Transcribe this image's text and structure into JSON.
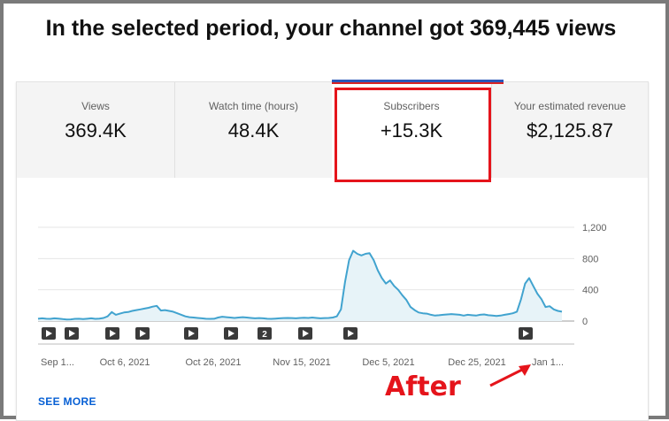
{
  "headline": "In the selected period, your channel got 369,445 views",
  "tabs": [
    {
      "label": "Views",
      "value": "369.4K"
    },
    {
      "label": "Watch time (hours)",
      "value": "48.4K"
    },
    {
      "label": "Subscribers",
      "value": "+15.3K"
    },
    {
      "label": "Your estimated revenue",
      "value": "$2,125.87"
    }
  ],
  "selected_tab": "Subscribers",
  "see_more": "SEE MORE",
  "annotation": "After",
  "colors": {
    "line": "#41a3cf",
    "area": "#e7f3f8",
    "highlight": "#e5141b",
    "link": "#065fd4"
  },
  "chart_data": {
    "type": "area",
    "x_tick_labels": [
      "Sep 1...",
      "Oct 6, 2021",
      "Oct 26, 2021",
      "Nov 15, 2021",
      "Dec 5, 2021",
      "Dec 25, 2021",
      "Jan 1..."
    ],
    "y_ticks": [
      0,
      400,
      800,
      1200
    ],
    "y_tick_labels": [
      "0",
      "400",
      "800",
      "1,200"
    ],
    "ylim": [
      0,
      1200
    ],
    "grid": true,
    "series": [
      {
        "values": [
          30,
          35,
          30,
          28,
          35,
          32,
          25,
          20,
          22,
          28,
          30,
          25,
          30,
          35,
          28,
          32,
          40,
          60,
          115,
          80,
          95,
          110,
          115,
          130,
          140,
          150,
          160,
          170,
          185,
          195,
          135,
          140,
          130,
          120,
          100,
          80,
          60,
          50,
          45,
          40,
          35,
          30,
          28,
          30,
          45,
          55,
          50,
          45,
          40,
          45,
          50,
          45,
          40,
          35,
          38,
          35,
          30,
          28,
          32,
          35,
          38,
          40,
          38,
          35,
          40,
          42,
          40,
          45,
          40,
          35,
          38,
          40,
          45,
          60,
          150,
          500,
          780,
          900,
          860,
          840,
          860,
          870,
          780,
          650,
          550,
          480,
          520,
          450,
          400,
          330,
          270,
          180,
          140,
          110,
          100,
          95,
          80,
          70,
          75,
          80,
          85,
          90,
          85,
          80,
          70,
          80,
          75,
          70,
          80,
          85,
          75,
          70,
          65,
          70,
          80,
          90,
          100,
          120,
          280,
          480,
          550,
          450,
          350,
          280,
          180,
          190,
          150,
          130,
          120
        ]
      }
    ],
    "event_markers": [
      {
        "icon": "play"
      },
      {
        "icon": "play"
      },
      {
        "icon": "play"
      },
      {
        "icon": "play"
      },
      {
        "icon": "play"
      },
      {
        "icon": "play"
      },
      {
        "text": "2"
      },
      {
        "icon": "play"
      },
      {
        "icon": "play"
      },
      {
        "icon": "play"
      }
    ]
  }
}
